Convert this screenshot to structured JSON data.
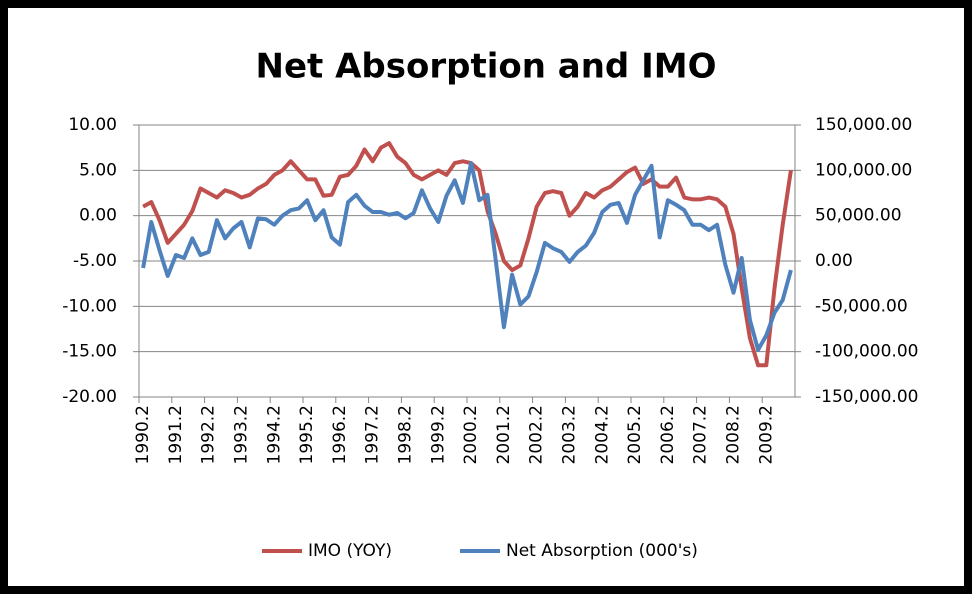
{
  "chart_data": {
    "type": "line",
    "title": "Net Absorption and IMO",
    "categories": [
      "1990.2",
      null,
      null,
      null,
      "1991.2",
      null,
      null,
      null,
      "1992.2",
      null,
      null,
      null,
      "1993.2",
      null,
      null,
      null,
      "1994.2",
      null,
      null,
      null,
      "1995.2",
      null,
      null,
      null,
      "1996.2",
      null,
      null,
      null,
      "1997.2",
      null,
      null,
      null,
      "1998.2",
      null,
      null,
      null,
      "1999.2",
      null,
      null,
      null,
      "2000.2",
      null,
      null,
      null,
      "2001.2",
      null,
      null,
      null,
      "2002.2",
      null,
      null,
      null,
      "2003.2",
      null,
      null,
      null,
      "2004.2",
      null,
      null,
      null,
      "2005.2",
      null,
      null,
      null,
      "2006.2",
      null,
      null,
      null,
      "2007.2",
      null,
      null,
      null,
      "2008.2",
      null,
      null,
      null,
      "2009.2",
      null,
      null,
      null
    ],
    "series": [
      {
        "name": "IMO (YOY)",
        "color": "#c0504d",
        "axis": "y",
        "values": [
          1.0,
          1.5,
          -0.5,
          -3.0,
          -2.0,
          -1.0,
          0.5,
          3.0,
          2.5,
          2.0,
          2.8,
          2.5,
          2.0,
          2.3,
          3.0,
          3.5,
          4.5,
          5.0,
          6.0,
          5.0,
          4.0,
          4.0,
          2.2,
          2.3,
          4.3,
          4.5,
          5.5,
          7.3,
          6.0,
          7.5,
          8.0,
          6.5,
          5.8,
          4.5,
          4.0,
          4.5,
          5.0,
          4.5,
          5.8,
          6.0,
          5.8,
          5.0,
          0.5,
          -2.0,
          -5.0,
          -6.0,
          -5.5,
          -2.5,
          1.0,
          2.5,
          2.7,
          2.5,
          0.0,
          1.0,
          2.5,
          2.0,
          2.8,
          3.2,
          4.0,
          4.8,
          5.3,
          3.5,
          4.0,
          3.2,
          3.2,
          4.2,
          2.0,
          1.8,
          1.8,
          2.0,
          1.8,
          1.0,
          -2.0,
          -8.0,
          -13.5,
          -16.5,
          -16.5,
          -8.0,
          -1.0,
          5.0
        ]
      },
      {
        "name": "Net Absorption (000's)",
        "color": "#4f81bd",
        "axis": "y2",
        "values": [
          -7700,
          43000,
          12000,
          -16500,
          6600,
          3300,
          25000,
          6600,
          10000,
          45000,
          25000,
          36000,
          43000,
          15000,
          47000,
          46000,
          40000,
          50000,
          56000,
          58000,
          67000,
          45000,
          56000,
          26000,
          18000,
          65000,
          73000,
          61000,
          54000,
          54000,
          51000,
          53000,
          47000,
          53000,
          78000,
          58000,
          43000,
          72000,
          89000,
          64000,
          108000,
          67000,
          73000,
          1000,
          -73000,
          -15000,
          -48000,
          -39000,
          -12000,
          20000,
          14000,
          10000,
          -1000,
          10000,
          17000,
          31000,
          54000,
          62000,
          64000,
          42000,
          73000,
          89000,
          105000,
          26000,
          67000,
          62000,
          56000,
          40000,
          40000,
          34000,
          40000,
          -4000,
          -35000,
          3300,
          -65000,
          -98000,
          -82000,
          -57000,
          -43000,
          -10000
        ]
      }
    ],
    "ylim": [
      -20,
      10
    ],
    "yticks": [
      {
        "value": -20,
        "label": "-20.00"
      },
      {
        "value": -15,
        "label": "-15.00"
      },
      {
        "value": -10,
        "label": "-10.00"
      },
      {
        "value": -5,
        "label": "-5.00"
      },
      {
        "value": 0,
        "label": "0.00"
      },
      {
        "value": 5,
        "label": "5.00"
      },
      {
        "value": 10,
        "label": "10.00"
      }
    ],
    "y2lim": [
      -150000,
      150000
    ],
    "y2ticks": [
      {
        "value": -150000,
        "label": "-150,000.00"
      },
      {
        "value": -100000,
        "label": "-100,000.00"
      },
      {
        "value": -50000,
        "label": "-50,000.00"
      },
      {
        "value": 0,
        "label": "0.00"
      },
      {
        "value": 50000,
        "label": "50,000.00"
      },
      {
        "value": 100000,
        "label": "100,000.00"
      },
      {
        "value": 150000,
        "label": "150,000.00"
      }
    ],
    "grid": true,
    "legend": "bottom"
  }
}
